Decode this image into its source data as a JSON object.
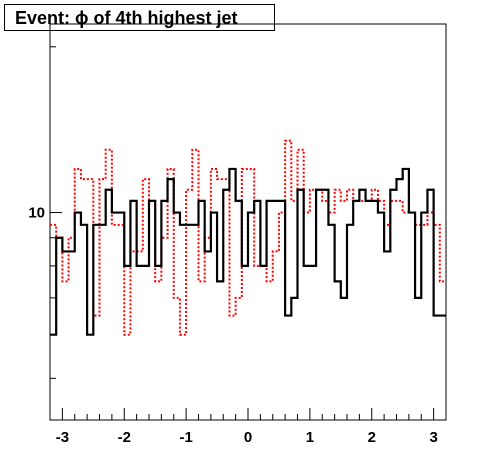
{
  "title": "Event: ϕ of 4th highest jet",
  "chart_data": {
    "type": "step",
    "title": "Event: ϕ of 4th highest jet",
    "xlabel": "",
    "ylabel": "",
    "xlim": [
      -3.2,
      3.2
    ],
    "ylim": [
      4.2,
      22
    ],
    "log_y": true,
    "x_ticks": [
      "-3",
      "-2",
      "-1",
      "0",
      "1",
      "2",
      "3"
    ],
    "x_tick_values": [
      -3,
      -2,
      -1,
      0,
      1,
      2,
      3
    ],
    "y_ticks": [
      "10"
    ],
    "y_tick_values": [
      10
    ],
    "bin_edges_range": [
      -3.2,
      3.2
    ],
    "n_bins": 64,
    "series": [
      {
        "color": "#000000",
        "line_style": "solid",
        "values": [
          6,
          9,
          8.5,
          8.5,
          10,
          9.5,
          6,
          9.5,
          9.5,
          11,
          10,
          10,
          8,
          10.5,
          8,
          8,
          10.5,
          8,
          10.5,
          11.5,
          10,
          9.5,
          9.5,
          9.5,
          10.5,
          8.5,
          10,
          7.5,
          11,
          12,
          10.5,
          8,
          10,
          10.5,
          8,
          10.5,
          10.5,
          10.5,
          6.5,
          7,
          11,
          8,
          8,
          11,
          11,
          9.5,
          7.5,
          7,
          9.5,
          10.5,
          11,
          10.5,
          10.5,
          10,
          8.5,
          11,
          11.5,
          12,
          10,
          7,
          10,
          11,
          6.5,
          6.5
        ]
      },
      {
        "color": "#ff0000",
        "line_style": "dotted",
        "values": [
          9.5,
          9,
          7.5,
          9,
          12,
          11.5,
          11.5,
          6.5,
          11.5,
          13,
          9.5,
          9.5,
          6,
          8.5,
          8.5,
          11.5,
          10.5,
          7.5,
          9,
          12,
          7,
          6,
          11,
          13,
          7.5,
          9,
          12,
          11.5,
          11.5,
          6.5,
          7,
          12,
          12,
          8,
          8,
          7.5,
          8.5,
          10,
          13.5,
          10.5,
          13,
          10,
          11,
          11,
          10.5,
          10,
          11,
          10.5,
          11,
          10.5,
          10.5,
          10.5,
          11,
          10.5,
          9.5,
          10.5,
          10.5,
          10,
          10,
          9.5,
          9.5,
          10,
          9.5,
          7.5
        ]
      }
    ]
  }
}
